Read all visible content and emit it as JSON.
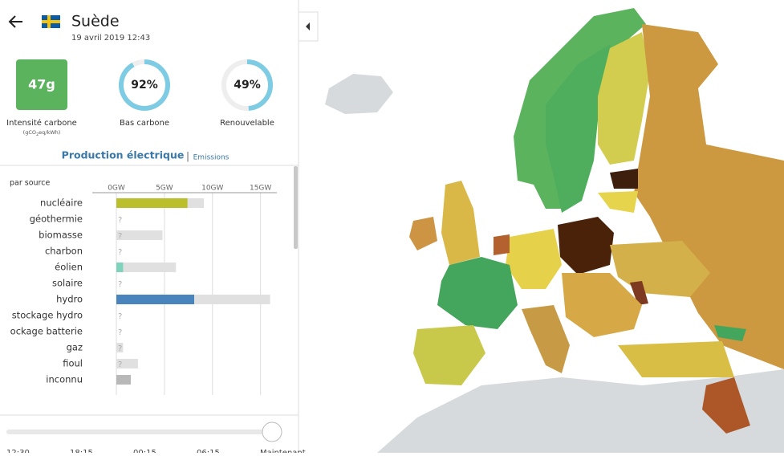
{
  "header": {
    "country": "Suède",
    "datetime": "19 avril 2019 12:43"
  },
  "carbon": {
    "value": "47g",
    "label": "Intensité carbone",
    "unit_parts": [
      "(gCO",
      "2",
      "eq/kWh)"
    ]
  },
  "rings": [
    {
      "percent": 92,
      "percent_label": "92%",
      "label": "Bas carbone"
    },
    {
      "percent": 49,
      "percent_label": "49%",
      "label": "Renouvelable"
    }
  ],
  "tabs": {
    "active": "Production électrique",
    "separator": "|",
    "other": "Emissions"
  },
  "chart_data": {
    "type": "bar",
    "orientation": "horizontal",
    "legend_title": "par source",
    "categories": [
      "nucléaire",
      "géothermie",
      "biomasse",
      "charbon",
      "éolien",
      "solaire",
      "hydro",
      "stockage hydro",
      "ockage batterie",
      "gaz",
      "fioul",
      "inconnu"
    ],
    "values": [
      7.4,
      null,
      null,
      null,
      0.7,
      null,
      8.1,
      null,
      null,
      null,
      null,
      1.5
    ],
    "capacity": [
      9.1,
      null,
      4.8,
      null,
      6.2,
      null,
      16,
      null,
      null,
      0.7,
      2.25,
      null
    ],
    "colors": [
      "#bcbf2c",
      null,
      null,
      null,
      "#7fd3bd",
      null,
      "#4a84bd",
      null,
      null,
      null,
      null,
      "#b8b8b8"
    ],
    "capacity_color": "#e0e0e0",
    "unknown_label": "?",
    "xlim": [
      0,
      16.7
    ],
    "xticks": [
      {
        "value": 0,
        "label": "0GW"
      },
      {
        "value": 5,
        "label": "5GW"
      },
      {
        "value": 10,
        "label": "10GW"
      },
      {
        "value": 15,
        "label": "15GW"
      }
    ],
    "grid": true
  },
  "timeline_labels": [
    "12:30",
    "18:15",
    "00:15",
    "06:15",
    "Maintenant"
  ]
}
